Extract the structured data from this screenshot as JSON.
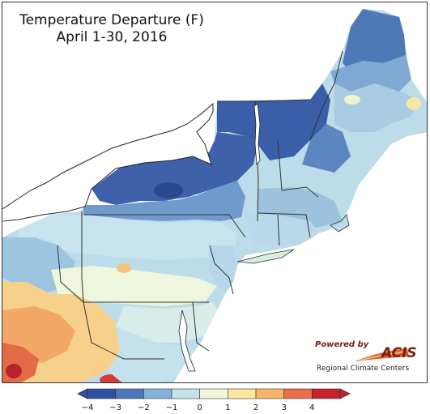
{
  "map": {
    "title_line1": "Temperature Departure (F)",
    "title_line2": "April 1-30, 2016"
  },
  "logo": {
    "powered_by": "Powered by",
    "acis": "ACIS",
    "subtitle": "Regional Climate Centers"
  },
  "legend": {
    "ticks": [
      "−4",
      "−3",
      "−2",
      "−1",
      "0",
      "1",
      "2",
      "3",
      "4"
    ],
    "colors": [
      "#2f4fa1",
      "#4a78bb",
      "#84b1d8",
      "#c3e2ee",
      "#f1f8da",
      "#fde7a0",
      "#f8b469",
      "#ea6d47",
      "#c5232c"
    ]
  }
}
